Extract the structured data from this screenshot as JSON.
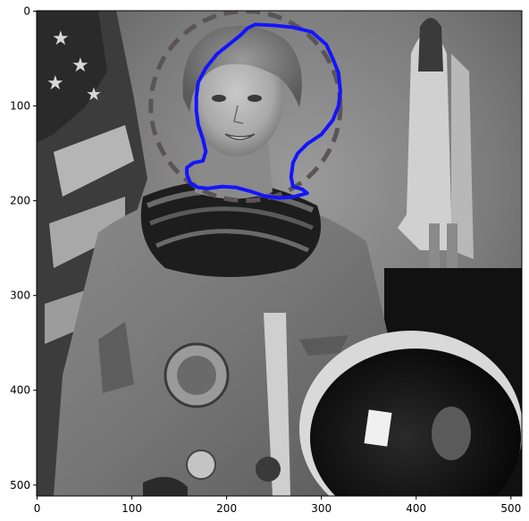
{
  "figure": {
    "image_subject": "astronaut",
    "overlay_colors": {
      "initial_contour": "#5a5458",
      "snake_contour": "#1414ff"
    }
  },
  "x_axis": {
    "ticks": [
      0,
      100,
      200,
      300,
      400,
      500
    ],
    "tick_labels": [
      "0",
      "100",
      "200",
      "300",
      "400",
      "500"
    ],
    "range": [
      0,
      511
    ]
  },
  "y_axis": {
    "ticks": [
      0,
      100,
      200,
      300,
      400,
      500
    ],
    "tick_labels": [
      "0",
      "100",
      "200",
      "300",
      "400",
      "500"
    ],
    "range": [
      0,
      511
    ],
    "inverted": true
  },
  "initial_circle": {
    "center": [
      220,
      100
    ],
    "radius": 100
  },
  "snake": [
    [
      230,
      14
    ],
    [
      250,
      15
    ],
    [
      270,
      17
    ],
    [
      290,
      22
    ],
    [
      305,
      35
    ],
    [
      312,
      50
    ],
    [
      318,
      65
    ],
    [
      320,
      85
    ],
    [
      318,
      100
    ],
    [
      312,
      115
    ],
    [
      300,
      130
    ],
    [
      285,
      140
    ],
    [
      275,
      150
    ],
    [
      270,
      160
    ],
    [
      268,
      175
    ],
    [
      270,
      185
    ],
    [
      280,
      188
    ],
    [
      285,
      192
    ],
    [
      270,
      196
    ],
    [
      255,
      197
    ],
    [
      240,
      195
    ],
    [
      225,
      190
    ],
    [
      210,
      186
    ],
    [
      195,
      185
    ],
    [
      180,
      187
    ],
    [
      170,
      186
    ],
    [
      162,
      182
    ],
    [
      158,
      172
    ],
    [
      158,
      165
    ],
    [
      165,
      160
    ],
    [
      175,
      158
    ],
    [
      178,
      148
    ],
    [
      175,
      135
    ],
    [
      170,
      120
    ],
    [
      168,
      105
    ],
    [
      168,
      90
    ],
    [
      170,
      75
    ],
    [
      178,
      60
    ],
    [
      190,
      45
    ],
    [
      205,
      33
    ],
    [
      215,
      25
    ],
    [
      222,
      18
    ]
  ]
}
